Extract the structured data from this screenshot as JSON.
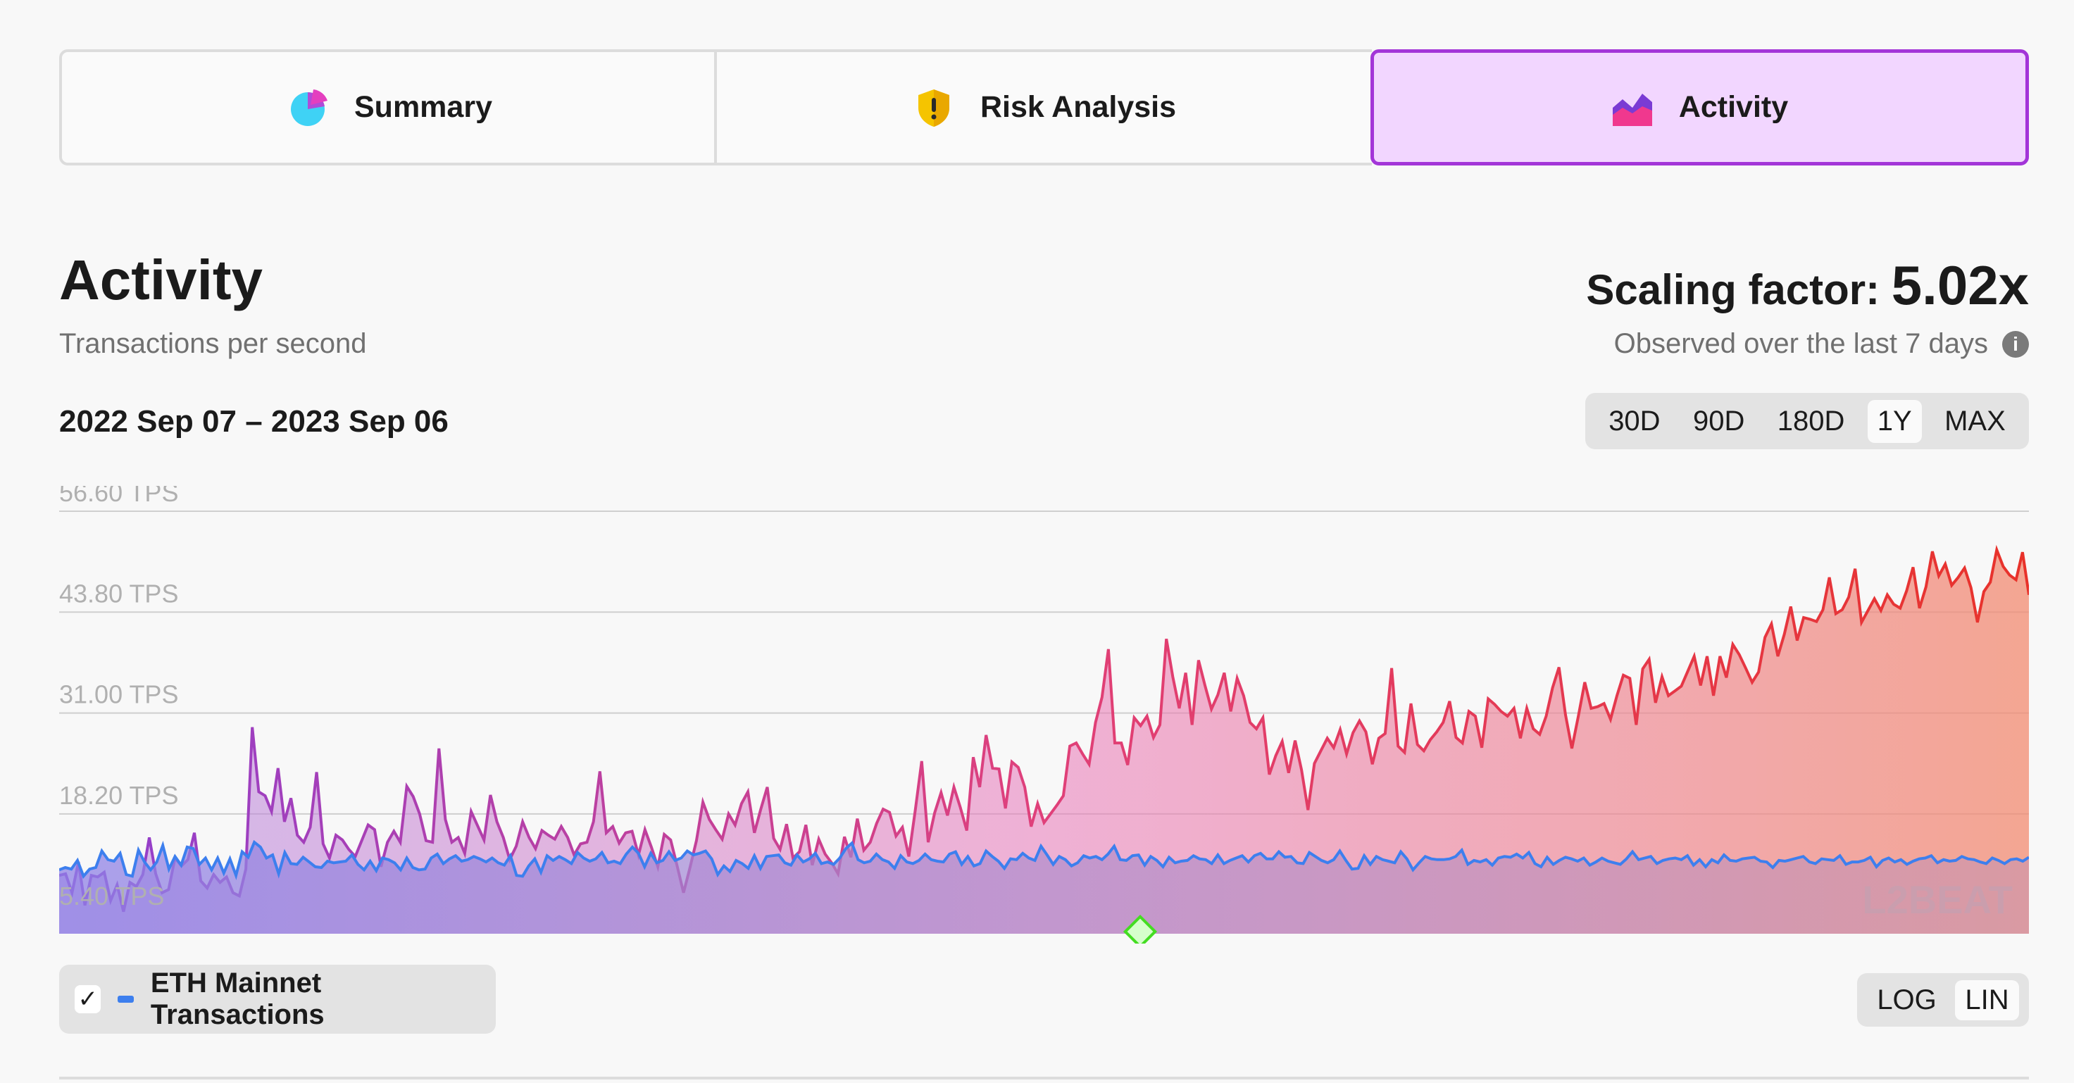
{
  "tabs": [
    {
      "label": "Summary",
      "icon": "pie-chart-icon"
    },
    {
      "label": "Risk Analysis",
      "icon": "shield-warning-icon"
    },
    {
      "label": "Activity",
      "icon": "area-chart-icon",
      "selected": true
    }
  ],
  "header": {
    "title": "Activity",
    "subtitle": "Transactions per second",
    "scaling_label": "Scaling factor:",
    "scaling_value": "5.02x",
    "observed": "Observed over the last 7 days",
    "date_range": "2022 Sep 07 – 2023 Sep 06"
  },
  "range_buttons": [
    "30D",
    "90D",
    "180D",
    "1Y",
    "MAX"
  ],
  "range_selected": "1Y",
  "scale_buttons": [
    "LOG",
    "LIN"
  ],
  "scale_selected": "LIN",
  "legend": {
    "label": "ETH Mainnet Transactions",
    "checked": true
  },
  "watermark": "L2BEAT",
  "colors": {
    "accent": "#a335d8",
    "eth_line": "#3d7fee",
    "l2_start": "#8f3fd0",
    "l2_mid": "#e0407a",
    "l2_end": "#e8322a",
    "marker": "#44dd22"
  },
  "chart_data": {
    "type": "area",
    "title": "Activity",
    "subtitle": "Transactions per second",
    "x_range": [
      "2022-09-07",
      "2023-09-06"
    ],
    "y_ticks": [
      "56.60 TPS",
      "43.80 TPS",
      "31.00 TPS",
      "18.20 TPS",
      "5.40 TPS"
    ],
    "ylim": [
      3,
      56.6
    ],
    "grid": true,
    "series": [
      {
        "name": "",
        "values": [
          10.4,
          10.6,
          8.2,
          12.1,
          6.6,
          10.4,
          10.2,
          10.8,
          7.2,
          9.2,
          5.8,
          9.5,
          9.0,
          10.5,
          15.2,
          10.6,
          8.2,
          8.6,
          12.6,
          11.6,
          12.4,
          15.8,
          9.7,
          8.8,
          10.5,
          9.5,
          10.2,
          8.2,
          7.8,
          11.2,
          29.2,
          21.0,
          20.5,
          18.5,
          24.0,
          17.2,
          20.2,
          15.5,
          14.6,
          16.5,
          23.5,
          14.4,
          12.6,
          15.5,
          14.9,
          13.7,
          12.8,
          14.8,
          16.8,
          16.2,
          11.5,
          14.6,
          16.0,
          14.6,
          21.7,
          20.4,
          18.2,
          14.8,
          14.6,
          26.5,
          17.5,
          14.6,
          15.2,
          13.2,
          18.5,
          16.7,
          14.9,
          20.6,
          17.2,
          15.2,
          12.4,
          14.1,
          17.2,
          15.2,
          13.8,
          16.1,
          15.5,
          15.0,
          16.6,
          15.2,
          13.0,
          14.4,
          14.6,
          17.2,
          23.6,
          15.8,
          16.6,
          14.5,
          15.8,
          16.0,
          13.0,
          16.2,
          14.0,
          11.5,
          15.6,
          14.9,
          11.6,
          8.2,
          11.4,
          14.8,
          19.7,
          17.5,
          16.2,
          15.0,
          18.2,
          16.8,
          19.5,
          21.0,
          15.8,
          18.8,
          21.6,
          15.1,
          13.7,
          16.9,
          12.6,
          13.4,
          16.8,
          11.7,
          15.0,
          13.1,
          12.0,
          10.6,
          15.3,
          12.7,
          17.6,
          13.6,
          14.6,
          17.0,
          18.8,
          18.4,
          15.4,
          16.5,
          12.8,
          18.7,
          24.9,
          14.6,
          18.3,
          20.9,
          18.0,
          21.6,
          19.0,
          16.1,
          25.4,
          21.6,
          28.2,
          24.0,
          23.9,
          18.9,
          24.8,
          24.1,
          21.6,
          16.6,
          19.5,
          17.1,
          18.2,
          19.3,
          20.5,
          26.8,
          27.2,
          25.8,
          24.5,
          29.8,
          33.0,
          39.1,
          27.2,
          27.2,
          24.4,
          30.4,
          29.4,
          30.6,
          27.9,
          29.5,
          40.4,
          35.6,
          31.6,
          36.1,
          29.5,
          37.7,
          34.5,
          31.5,
          33.3,
          36.1,
          31.2,
          35.4,
          33.2,
          29.8,
          29.0,
          30.4,
          23.2,
          25.6,
          27.4,
          23.4,
          27.5,
          23.8,
          18.7,
          24.6,
          26.2,
          27.8,
          26.6,
          28.9,
          25.8,
          28.5,
          30.0,
          28.6,
          24.5,
          27.8,
          28.4,
          36.7,
          26.8,
          26.0,
          32.2,
          27.0,
          26.2,
          27.6,
          28.6,
          29.8,
          32.5,
          27.9,
          27.2,
          31.2,
          30.6,
          26.6,
          32.8,
          32.1,
          31.2,
          30.6,
          31.6,
          27.8,
          31.6,
          29.0,
          28.3,
          30.6,
          34.2,
          36.8,
          30.8,
          26.5,
          30.6,
          34.9,
          31.6,
          31.8,
          32.2,
          30.2,
          33.2,
          35.8,
          35.4,
          29.5,
          36.6,
          37.8,
          32.3,
          35.6,
          33.2,
          33.8,
          34.4,
          36.3,
          38.2,
          34.5,
          38.2,
          33.2,
          38.2,
          35.5,
          39.7,
          38.4,
          36.7,
          34.9,
          36.2,
          40.6,
          42.3,
          38.2,
          41.0,
          44.5,
          40.2,
          43.1,
          42.9,
          42.6,
          44.1,
          48.2,
          43.6,
          44.1,
          45.7,
          49.3,
          42.5,
          44.0,
          45.5,
          44.0,
          46.0,
          44.8,
          44.3,
          46.5,
          49.5,
          44.3,
          47.0,
          51.5,
          48.4,
          49.9,
          47.2,
          48.2,
          49.4,
          46.9,
          42.5,
          46.4,
          47.6,
          51.7,
          49.6,
          48.5,
          47.9,
          51.4,
          46.0
        ]
      },
      {
        "name": "ETH Mainnet Transactions",
        "values": [
          11.1,
          11.4,
          11.2,
          12.3,
          10.3,
          11.2,
          11.4,
          13.5,
          12.4,
          12.2,
          13.2,
          10.5,
          10.3,
          13.6,
          12.1,
          11.1,
          12.1,
          14.2,
          11.2,
          12.8,
          11.7,
          14.0,
          13.8,
          11.8,
          12.6,
          11.1,
          12.6,
          10.7,
          12.5,
          10.4,
          13.4,
          12.7,
          14.6,
          14.0,
          12.6,
          13.0,
          10.6,
          13.3,
          11.9,
          11.8,
          12.7,
          12.1,
          11.5,
          11.4,
          12.2,
          12.0,
          12.1,
          12.2,
          13.0,
          11.8,
          11.1,
          12.2,
          11.0,
          12.6,
          12.4,
          12.0,
          11.1,
          12.6,
          11.4,
          11.1,
          11.2,
          12.6,
          13.1,
          11.9,
          12.5,
          12.9,
          12.2,
          12.4,
          12.8,
          12.5,
          12.1,
          12.6,
          12.0,
          11.7,
          12.9,
          10.4,
          10.3,
          11.6,
          12.5,
          10.8,
          12.9,
          12.3,
          12.8,
          12.4,
          11.9,
          13.3,
          12.6,
          12.2,
          12.5,
          13.3,
          12.0,
          12.2,
          11.9,
          13.1,
          14.0,
          13.2,
          11.5,
          13.2,
          12.0,
          12.3,
          13.4,
          12.3,
          12.6,
          13.5,
          13.0,
          13.2,
          13.5,
          12.5,
          10.5,
          11.6,
          10.9,
          12.3,
          11.9,
          11.3,
          12.9,
          11.3,
          12.8,
          12.9,
          13.0,
          12.0,
          11.7,
          13.0,
          12.1,
          12.5,
          13.2,
          11.9,
          12.1,
          11.8,
          12.6,
          13.8,
          14.5,
          12.4,
          12.0,
          12.2,
          13.1,
          12.4,
          12.1,
          11.3,
          12.9,
          12.1,
          11.9,
          12.3,
          13.1,
          12.4,
          12.2,
          12.1,
          13.1,
          13.4,
          11.8,
          12.8,
          11.6,
          11.9,
          13.5,
          12.8,
          12.2,
          11.3,
          12.5,
          12.4,
          13.2,
          12.6,
          12.3,
          14.1,
          13.0,
          11.8,
          12.8,
          12.4,
          11.6,
          12.0,
          12.9,
          12.6,
          12.8,
          12.4,
          13.1,
          14.1,
          12.4,
          12.3,
          12.9,
          13.0,
          11.7,
          12.8,
          12.3,
          11.5,
          12.7,
          12.0,
          12.2,
          12.3,
          12.9,
          12.5,
          12.4,
          11.9,
          13.0,
          11.9,
          12.3,
          12.6,
          12.9,
          12.1,
          12.9,
          13.2,
          12.5,
          12.5,
          13.4,
          12.7,
          12.8,
          12.0,
          11.9,
          13.3,
          12.8,
          12.3,
          12.0,
          12.4,
          13.5,
          12.3,
          11.2,
          11.3,
          12.9,
          11.8,
          12.8,
          12.4,
          12.2,
          12.0,
          13.4,
          12.5,
          11.1,
          12.0,
          12.8,
          12.5,
          12.4,
          12.4,
          12.5,
          12.8,
          13.6,
          11.8,
          12.3,
          12.1,
          12.4,
          11.7,
          12.6,
          12.8,
          12.7,
          13.1,
          12.6,
          13.3,
          11.9,
          11.5,
          12.7,
          11.8,
          12.3,
          12.7,
          12.5,
          12.2,
          12.6,
          11.7,
          12.1,
          12.6,
          12.2,
          12.0,
          11.8,
          12.5,
          13.4,
          12.4,
          12.6,
          12.8,
          11.9,
          12.3,
          12.5,
          12.6,
          12.4,
          12.9,
          11.7,
          12.4,
          11.5,
          12.4,
          12.0,
          13.0,
          12.3,
          12.2,
          12.5,
          12.6,
          12.7,
          12.2,
          12.1,
          11.4,
          12.3,
          12.2,
          12.4,
          12.6,
          12.8,
          12.1,
          11.9,
          12.5,
          12.4,
          12.3,
          12.9,
          11.8,
          12.1,
          12.1,
          12.3,
          12.7,
          11.5,
          12.3,
          12.6,
          12.1,
          12.4,
          11.8,
          12.2,
          12.5,
          12.6,
          12.9,
          12.0,
          12.4,
          12.2,
          12.3,
          12.8,
          12.5,
          12.4,
          12.1,
          11.9,
          12.6,
          12.3,
          11.9,
          12.4,
          12.5,
          12.2,
          12.7
        ]
      }
    ]
  }
}
